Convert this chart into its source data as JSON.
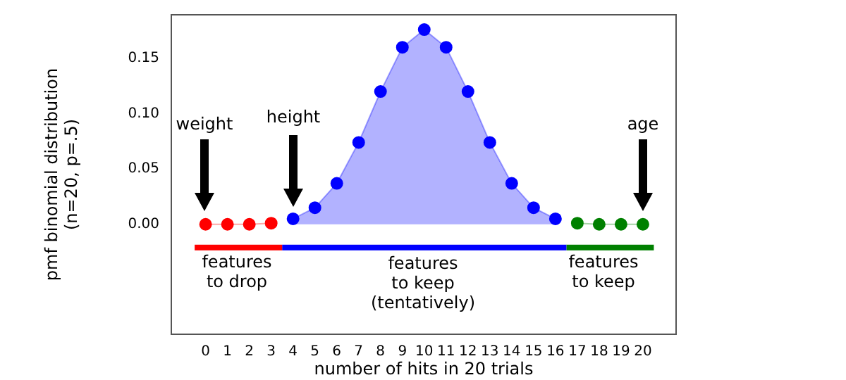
{
  "chart_data": {
    "type": "line",
    "xlabel": "number of hits in 20 trials",
    "ylabel": "pmf binomial distribution\n(n=20, p=.5)",
    "xlim": [
      -1.6,
      21.55
    ],
    "xticks": [
      0,
      1,
      2,
      3,
      4,
      5,
      6,
      7,
      8,
      9,
      10,
      11,
      12,
      13,
      14,
      15,
      16,
      17,
      18,
      19,
      20
    ],
    "ylim": [
      -0.1,
      0.19
    ],
    "yticks": [
      {
        "value": 0,
        "label": "0.00"
      },
      {
        "value": 0.05,
        "label": "0.05"
      },
      {
        "value": 0.1,
        "label": "0.10"
      },
      {
        "value": 0.15,
        "label": "0.15"
      }
    ],
    "grid": false,
    "legend": false,
    "series": [
      {
        "marker": "circle",
        "color": "#ff0000",
        "x": [
          0,
          1,
          2,
          3
        ],
        "values": [
          0,
          0,
          0,
          0.001
        ]
      },
      {
        "type": "area",
        "marker": "circle",
        "color": "#0000ff",
        "x": [
          4,
          5,
          6,
          7,
          8,
          9,
          10,
          11,
          12,
          13,
          14,
          15,
          16
        ],
        "values": [
          0.005,
          0.015,
          0.037,
          0.074,
          0.12,
          0.16,
          0.176,
          0.16,
          0.12,
          0.074,
          0.037,
          0.015,
          0.005
        ]
      },
      {
        "marker": "circle",
        "color": "#008000",
        "x": [
          17,
          18,
          19,
          20
        ],
        "values": [
          0.001,
          0,
          0,
          0
        ]
      },
      {
        "marker": "none",
        "color": "#ff0000",
        "x": [
          -0.5,
          3.5
        ],
        "values": [
          -0.021,
          -0.021
        ]
      },
      {
        "marker": "none",
        "color": "#0000ff",
        "x": [
          3.5,
          16.5
        ],
        "values": [
          -0.021,
          -0.021
        ]
      },
      {
        "marker": "none",
        "color": "#008000",
        "x": [
          16.5,
          20.5
        ],
        "values": [
          -0.021,
          -0.021
        ]
      }
    ],
    "annotations": [
      "weight",
      "height",
      "age",
      "features\nto drop",
      "features\nto keep\n(tentatively)",
      "features\nto keep"
    ]
  }
}
